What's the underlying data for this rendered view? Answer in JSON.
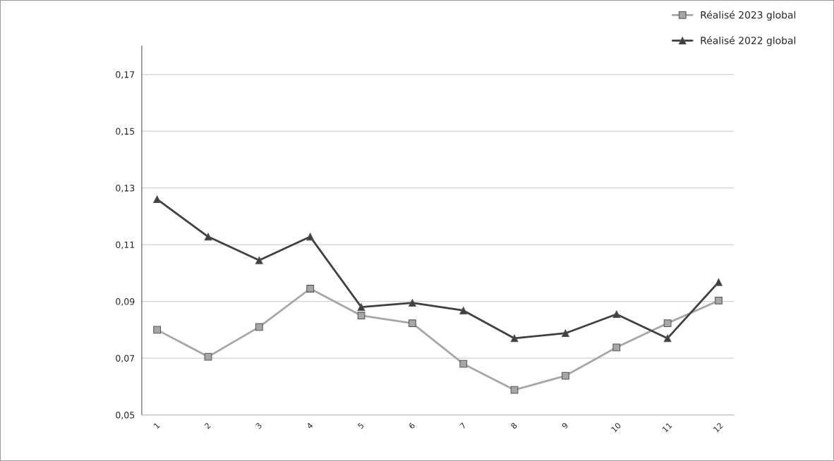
{
  "chart_data": {
    "type": "line",
    "categories": [
      "1",
      "2",
      "3",
      "4",
      "5",
      "6",
      "7",
      "8",
      "9",
      "10",
      "11",
      "12"
    ],
    "series": [
      {
        "name": "Réalisé 2023 global",
        "color": "#a6a6a6",
        "marker": "square",
        "values": [
          0.08,
          0.0705,
          0.081,
          0.0945,
          0.085,
          0.0823,
          0.068,
          0.0588,
          0.0638,
          0.0738,
          0.0823,
          0.0903
        ]
      },
      {
        "name": "Réalisé 2022 global",
        "color": "#404040",
        "marker": "triangle",
        "values": [
          0.126,
          0.1128,
          0.1045,
          0.1128,
          0.088,
          0.0895,
          0.0868,
          0.077,
          0.0788,
          0.0855,
          0.077,
          0.0968
        ]
      }
    ],
    "ylim": [
      0.05,
      0.18
    ],
    "yticks": [
      {
        "value": 0.05,
        "label": "0,05"
      },
      {
        "value": 0.07,
        "label": "0,07"
      },
      {
        "value": 0.09,
        "label": "0,09"
      },
      {
        "value": 0.11,
        "label": "0,11"
      },
      {
        "value": 0.13,
        "label": "0,13"
      },
      {
        "value": 0.15,
        "label": "0,15"
      },
      {
        "value": 0.17,
        "label": "0,17"
      }
    ],
    "grid": "y",
    "legend": "top right",
    "line_style": "solid"
  }
}
